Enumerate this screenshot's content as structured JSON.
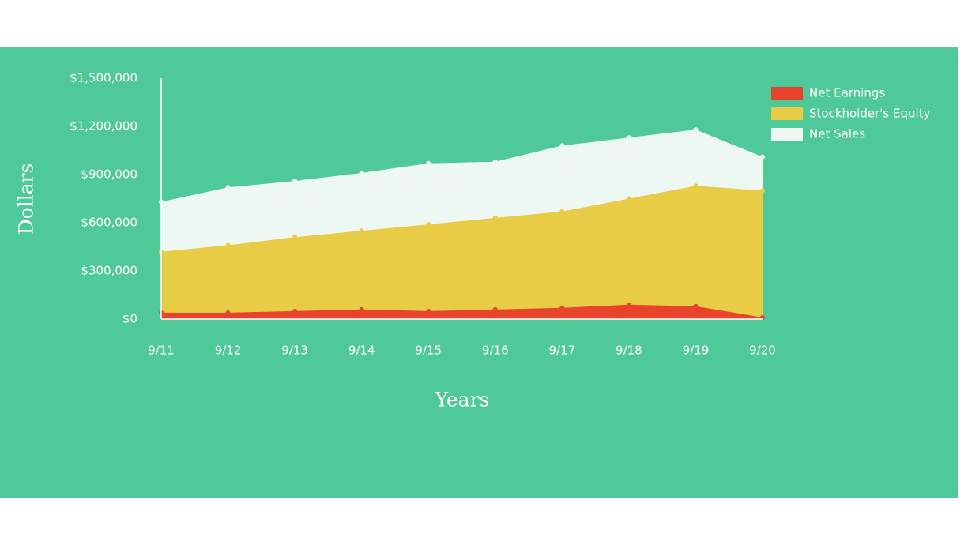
{
  "chart_data": {
    "type": "area",
    "categories": [
      "9/11",
      "9/12",
      "9/13",
      "9/14",
      "9/15",
      "9/16",
      "9/17",
      "9/18",
      "9/19",
      "9/20"
    ],
    "series": [
      {
        "name": "Net Earnings",
        "color": "#e8432b",
        "values": [
          40000,
          40000,
          50000,
          60000,
          50000,
          60000,
          70000,
          90000,
          80000,
          10000
        ]
      },
      {
        "name": "Stockholder's Equity",
        "color": "#e9cc45",
        "values": [
          420000,
          460000,
          510000,
          550000,
          590000,
          630000,
          670000,
          750000,
          830000,
          800000
        ]
      },
      {
        "name": "Net Sales",
        "color": "#eef8f3",
        "values": [
          730000,
          820000,
          860000,
          910000,
          970000,
          980000,
          1080000,
          1130000,
          1180000,
          1010000
        ]
      }
    ],
    "ylim": [
      0,
      1500000
    ],
    "yticks": [
      {
        "value": 0,
        "label": "$0"
      },
      {
        "value": 300000,
        "label": "$300,000"
      },
      {
        "value": 600000,
        "label": "$600,000"
      },
      {
        "value": 900000,
        "label": "$900,000"
      },
      {
        "value": 1200000,
        "label": "$1,200,000"
      },
      {
        "value": 1500000,
        "label": "$1,500,000"
      }
    ],
    "xlabel": "Years",
    "ylabel": "Dollars",
    "legend": "top-right",
    "grid": false
  }
}
